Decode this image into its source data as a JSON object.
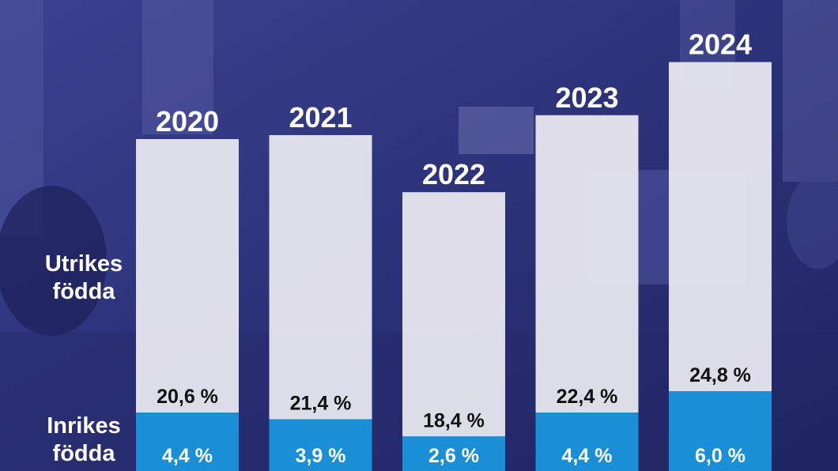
{
  "row_labels": {
    "upper": [
      "Utrikes",
      "födda"
    ],
    "lower": [
      "Inrikes",
      "födda"
    ]
  },
  "colors": {
    "upper_bar": "#ecebf2",
    "lower_bar": "#1a8fd6",
    "background": "#2a2f7a"
  },
  "chart_data": {
    "type": "bar",
    "stacked": true,
    "categories": [
      "2020",
      "2021",
      "2022",
      "2023",
      "2024"
    ],
    "series": [
      {
        "name": "Inrikes födda",
        "values": [
          4.4,
          3.9,
          2.6,
          4.4,
          6.0
        ],
        "labels": [
          "4,4 %",
          "3,9 %",
          "2,6 %",
          "4,4 %",
          "6,0 %"
        ]
      },
      {
        "name": "Utrikes födda",
        "values": [
          20.6,
          21.4,
          18.4,
          22.4,
          24.8
        ],
        "labels": [
          "20,6 %",
          "21,4 %",
          "18,4 %",
          "22,4 %",
          "24,8 %"
        ]
      }
    ],
    "grid": false,
    "legend": "left"
  }
}
